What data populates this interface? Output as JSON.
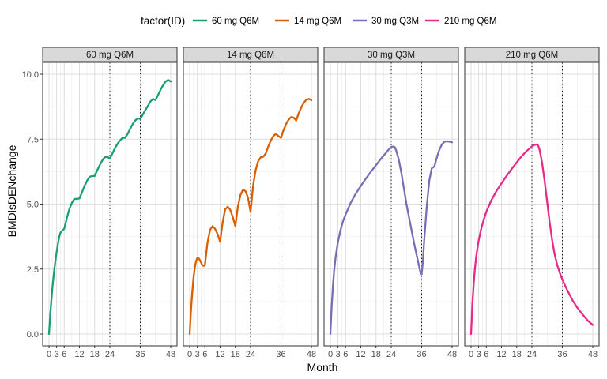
{
  "chart_data": {
    "type": "line",
    "facet_by": "factor(ID)",
    "xlabel": "Month",
    "ylabel": "BMDlsDENchange",
    "xlim": [
      0,
      48
    ],
    "ylim": [
      0,
      10
    ],
    "x_ticks": [
      0,
      3,
      6,
      12,
      18,
      24,
      36,
      48
    ],
    "y_ticks": [
      0.0,
      2.5,
      5.0,
      7.5,
      10.0
    ],
    "y_tick_labels": [
      "0.0",
      "2.5",
      "5.0",
      "7.5",
      "10.0"
    ],
    "reference_lines_x": [
      24,
      36
    ],
    "reference_line_style": "dotted",
    "grid": true,
    "legend": {
      "title": "factor(ID)",
      "position": "top",
      "items": [
        "60 mg Q6M",
        "14 mg Q6M",
        "30 mg Q3M",
        "210 mg Q6M"
      ]
    },
    "series": [
      {
        "name": "60 mg Q6M",
        "color": "#1B9E77",
        "x": [
          0,
          0.5,
          1,
          1.5,
          2,
          2.5,
          3,
          3.5,
          4,
          4.5,
          5,
          5.5,
          6,
          7,
          8,
          9,
          10,
          11,
          12,
          13,
          14,
          15,
          16,
          17,
          18,
          19,
          20,
          21,
          22,
          23,
          24,
          25,
          26,
          27,
          28,
          29,
          30,
          31,
          32,
          33,
          34,
          35,
          36,
          37,
          38,
          39,
          40,
          41,
          42,
          43,
          44,
          45,
          46,
          47,
          48
        ],
        "y": [
          0,
          0.75,
          1.4,
          1.95,
          2.4,
          2.8,
          3.15,
          3.45,
          3.72,
          3.9,
          3.96,
          4.0,
          4.05,
          4.45,
          4.8,
          5.05,
          5.2,
          5.2,
          5.22,
          5.45,
          5.7,
          5.9,
          6.05,
          6.08,
          6.08,
          6.3,
          6.5,
          6.68,
          6.8,
          6.82,
          6.75,
          6.95,
          7.15,
          7.32,
          7.45,
          7.55,
          7.55,
          7.7,
          7.9,
          8.08,
          8.22,
          8.3,
          8.28,
          8.45,
          8.62,
          8.78,
          8.95,
          9.05,
          9.0,
          9.2,
          9.4,
          9.58,
          9.72,
          9.78,
          9.72
        ]
      },
      {
        "name": "14 mg Q6M",
        "color": "#D95F02",
        "x": [
          0,
          0.5,
          1,
          1.5,
          2,
          2.5,
          3,
          3.5,
          4,
          4.5,
          5,
          5.5,
          6,
          7,
          8,
          9,
          10,
          11,
          12,
          13,
          14,
          15,
          16,
          17,
          18,
          19,
          20,
          21,
          22,
          23,
          24,
          25,
          26,
          27,
          28,
          29,
          30,
          31,
          32,
          33,
          34,
          35,
          36,
          37,
          38,
          39,
          40,
          41,
          42,
          43,
          44,
          45,
          46,
          47,
          48
        ],
        "y": [
          0,
          0.9,
          1.6,
          2.15,
          2.55,
          2.8,
          2.92,
          2.92,
          2.85,
          2.75,
          2.65,
          2.62,
          2.65,
          3.5,
          4.0,
          4.15,
          4.05,
          3.85,
          3.55,
          4.3,
          4.8,
          4.9,
          4.78,
          4.5,
          4.15,
          4.9,
          5.35,
          5.55,
          5.5,
          5.25,
          4.7,
          5.7,
          6.3,
          6.65,
          6.8,
          6.82,
          6.95,
          7.22,
          7.45,
          7.62,
          7.7,
          7.62,
          7.55,
          7.85,
          8.08,
          8.25,
          8.35,
          8.33,
          8.22,
          8.5,
          8.72,
          8.9,
          9.02,
          9.05,
          9.0
        ]
      },
      {
        "name": "30 mg Q3M",
        "color": "#7570B3",
        "x": [
          0,
          0.5,
          1,
          1.5,
          2,
          2.5,
          3,
          4,
          5,
          6,
          8,
          10,
          12,
          14,
          16,
          18,
          20,
          22,
          23,
          24,
          25,
          25.5,
          26,
          27,
          28,
          29,
          30,
          31,
          32,
          33,
          34,
          35,
          35.5,
          36,
          36.5,
          37,
          38,
          39,
          40,
          41,
          42,
          43,
          44,
          45,
          46,
          47,
          48
        ],
        "y": [
          0,
          1.05,
          1.85,
          2.45,
          2.9,
          3.25,
          3.55,
          4.0,
          4.35,
          4.6,
          5.05,
          5.4,
          5.7,
          5.98,
          6.25,
          6.5,
          6.75,
          6.98,
          7.1,
          7.2,
          7.22,
          7.18,
          7.05,
          6.7,
          6.2,
          5.6,
          5.0,
          4.5,
          4.0,
          3.5,
          3.05,
          2.6,
          2.38,
          2.3,
          2.8,
          3.6,
          4.9,
          5.9,
          6.38,
          6.45,
          6.8,
          7.1,
          7.3,
          7.4,
          7.42,
          7.4,
          7.38
        ]
      },
      {
        "name": "210 mg Q6M",
        "color": "#E7298A",
        "x": [
          0,
          0.5,
          1,
          1.5,
          2,
          2.5,
          3,
          4,
          5,
          6,
          8,
          10,
          12,
          14,
          16,
          18,
          20,
          22,
          24,
          25,
          26,
          26.5,
          27,
          28,
          29,
          30,
          31,
          32,
          33,
          34,
          35,
          36,
          37,
          38,
          40,
          42,
          44,
          46,
          48
        ],
        "y": [
          0,
          1.1,
          1.9,
          2.5,
          2.95,
          3.3,
          3.6,
          4.05,
          4.4,
          4.7,
          5.15,
          5.5,
          5.8,
          6.08,
          6.35,
          6.6,
          6.85,
          7.05,
          7.22,
          7.28,
          7.3,
          7.25,
          7.1,
          6.6,
          5.9,
          5.1,
          4.3,
          3.6,
          3.05,
          2.65,
          2.35,
          2.1,
          1.88,
          1.68,
          1.3,
          1.0,
          0.75,
          0.52,
          0.35
        ]
      }
    ]
  }
}
